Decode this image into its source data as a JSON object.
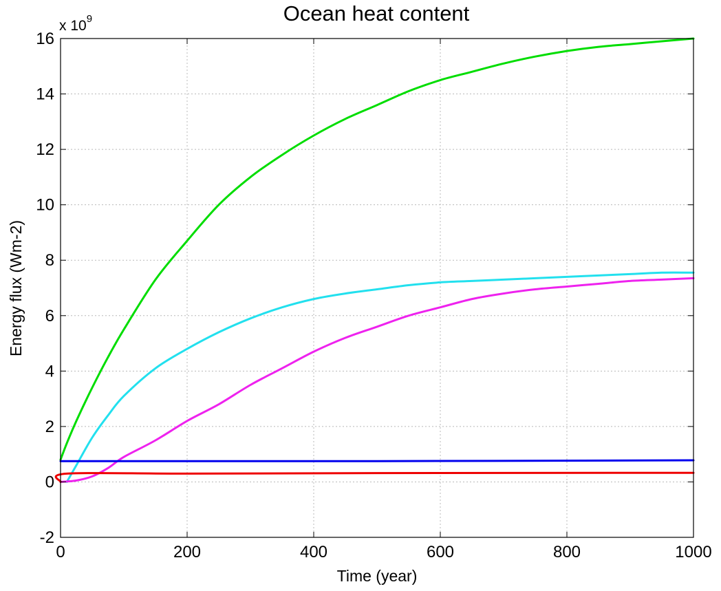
{
  "chart_data": {
    "type": "line",
    "title": "Ocean heat content",
    "xlabel": "Time (year)",
    "ylabel": "Energy flux (Wm-2)",
    "y_multiplier_base": "x 10",
    "y_multiplier_exponent": "9",
    "xlim": [
      0,
      1000
    ],
    "ylim": [
      -2,
      16
    ],
    "x_ticks": [
      0,
      200,
      400,
      600,
      800,
      1000
    ],
    "y_ticks": [
      -2,
      0,
      2,
      4,
      6,
      8,
      10,
      12,
      14,
      16
    ],
    "x_tick_labels": [
      "0",
      "200",
      "400",
      "600",
      "800",
      "1000"
    ],
    "y_tick_labels": [
      "-2",
      "0",
      "2",
      "4",
      "6",
      "8",
      "10",
      "12",
      "14",
      "16"
    ],
    "grid": true,
    "legend": "none",
    "series": [
      {
        "color": "#00dd00",
        "x": [
          0,
          10,
          25,
          50,
          75,
          100,
          150,
          200,
          250,
          300,
          350,
          400,
          450,
          500,
          550,
          600,
          650,
          700,
          750,
          800,
          850,
          900,
          950,
          1000
        ],
        "y": [
          0.8,
          1.4,
          2.2,
          3.4,
          4.5,
          5.5,
          7.3,
          8.7,
          10.0,
          11.0,
          11.8,
          12.5,
          13.1,
          13.6,
          14.1,
          14.5,
          14.8,
          15.1,
          15.35,
          15.55,
          15.7,
          15.8,
          15.9,
          16.0
        ]
      },
      {
        "color": "#22e0ee",
        "x": [
          10,
          25,
          50,
          75,
          100,
          150,
          200,
          250,
          300,
          350,
          400,
          450,
          500,
          550,
          600,
          650,
          700,
          750,
          800,
          850,
          900,
          950,
          1000
        ],
        "y": [
          0.0,
          0.6,
          1.6,
          2.4,
          3.1,
          4.1,
          4.8,
          5.4,
          5.9,
          6.3,
          6.6,
          6.8,
          6.95,
          7.1,
          7.2,
          7.25,
          7.3,
          7.35,
          7.4,
          7.45,
          7.5,
          7.55,
          7.55
        ]
      },
      {
        "color": "#ee22ee",
        "x": [
          0,
          25,
          50,
          75,
          100,
          150,
          200,
          250,
          300,
          350,
          400,
          450,
          500,
          550,
          600,
          650,
          700,
          750,
          800,
          850,
          900,
          950,
          1000
        ],
        "y": [
          0.0,
          0.05,
          0.2,
          0.5,
          0.9,
          1.5,
          2.2,
          2.8,
          3.5,
          4.1,
          4.7,
          5.2,
          5.6,
          6.0,
          6.3,
          6.6,
          6.8,
          6.95,
          7.05,
          7.15,
          7.25,
          7.3,
          7.35
        ]
      },
      {
        "color": "#0000ee",
        "x": [
          0,
          500,
          1000
        ],
        "y": [
          0.75,
          0.75,
          0.78
        ]
      },
      {
        "color": "#ee0000",
        "x": [
          0,
          10,
          200,
          500,
          1000
        ],
        "y": [
          0.0,
          0.3,
          0.3,
          0.32,
          0.33
        ]
      }
    ]
  }
}
